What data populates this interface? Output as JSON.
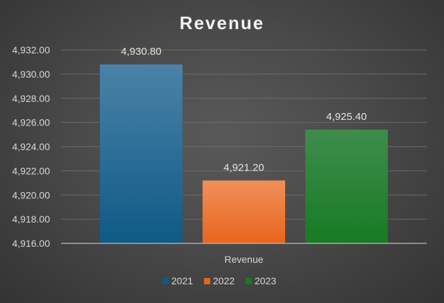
{
  "chart_data": {
    "type": "bar",
    "title": "Revenue",
    "categories": [
      "Revenue"
    ],
    "series": [
      {
        "name": "2021",
        "values": [
          4930.8
        ],
        "label": "4,930.80",
        "color": "#1f6a96"
      },
      {
        "name": "2022",
        "values": [
          4921.2
        ],
        "label": "4,921.20",
        "color": "#f07a2e"
      },
      {
        "name": "2023",
        "values": [
          4925.4
        ],
        "label": "4,925.40",
        "color": "#2a8a3a"
      }
    ],
    "ylim": [
      4916,
      4932
    ],
    "yticks": [
      "4,916.00",
      "4,918.00",
      "4,920.00",
      "4,922.00",
      "4,924.00",
      "4,926.00",
      "4,928.00",
      "4,930.00",
      "4,932.00"
    ],
    "ytick_values": [
      4916,
      4918,
      4920,
      4922,
      4924,
      4926,
      4928,
      4930,
      4932
    ],
    "grid": true,
    "legend_position": "bottom"
  }
}
